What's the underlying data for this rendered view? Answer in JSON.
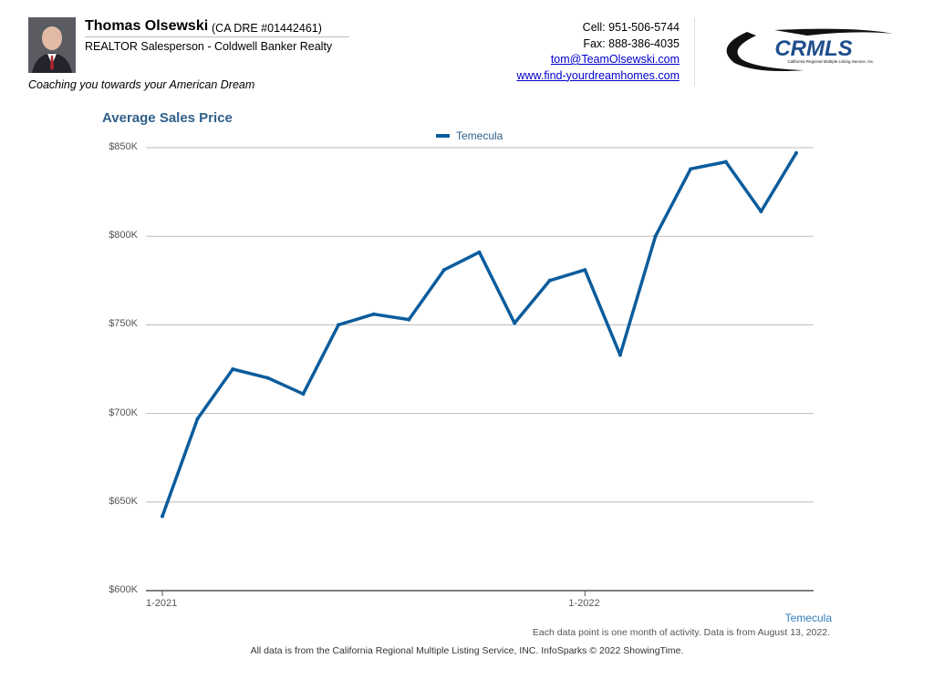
{
  "header": {
    "name": "Thomas Olsewski",
    "license": "(CA DRE #01442461)",
    "title": "REALTOR Salesperson - Coldwell Banker Realty",
    "tagline": "Coaching you towards your American Dream",
    "cell": "Cell: 951-506-5744",
    "fax": "Fax: 888-386-4035",
    "email": "tom@TeamOlsewski.com",
    "website": "www.find-yourdreamhomes.com",
    "logo_text": "CRMLS",
    "logo_subtext": "California Regional Multiple Listing Service, Inc."
  },
  "colors": {
    "series": "#0b5c9c",
    "title": "#2f5f8a",
    "grid": "#bbbbbb",
    "logo_navy": "#1f4e8c"
  },
  "chart_data": {
    "type": "line",
    "title": "Average Sales Price",
    "y_tick_labels": [
      "$850K",
      "$800K",
      "$750K",
      "$700K",
      "$650K",
      "$600K"
    ],
    "y_tick_values": [
      850000,
      800000,
      750000,
      700000,
      650000,
      600000
    ],
    "ylim": [
      600000,
      850000
    ],
    "x": [
      "2021-01",
      "2021-02",
      "2021-03",
      "2021-04",
      "2021-05",
      "2021-06",
      "2021-07",
      "2021-08",
      "2021-09",
      "2021-10",
      "2021-11",
      "2021-12",
      "2022-01",
      "2022-02",
      "2022-03",
      "2022-04",
      "2022-05",
      "2022-06",
      "2022-07"
    ],
    "x_tick_labels": [
      {
        "label": "1-2021",
        "x": "2021-01"
      },
      {
        "label": "1-2022",
        "x": "2022-01"
      }
    ],
    "series": [
      {
        "name": "Temecula",
        "values": [
          642000,
          697000,
          725000,
          720000,
          711000,
          750000,
          756000,
          753000,
          781000,
          791000,
          751000,
          775000,
          781000,
          733000,
          800000,
          838000,
          842000,
          814000,
          847000
        ]
      }
    ],
    "legend_position": "top-center",
    "grid": true
  },
  "footer": {
    "series_label": "Temecula",
    "note": "Each data point is one month of activity. Data is from August 13, 2022.",
    "source": "All data is from the California Regional Multiple Listing Service, INC. InfoSparks © 2022 ShowingTime."
  }
}
